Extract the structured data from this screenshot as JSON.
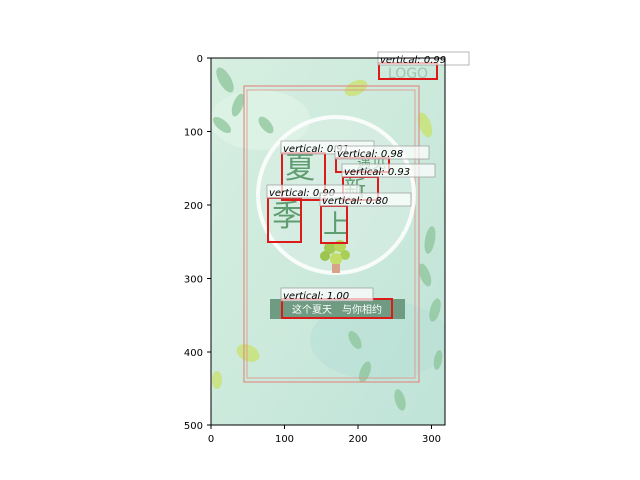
{
  "axes": {
    "x_ticks": [
      "0",
      "100",
      "200",
      "300"
    ],
    "y_ticks": [
      "0",
      "100",
      "200",
      "300",
      "400",
      "500"
    ]
  },
  "poster": {
    "logo_text": "LOGO",
    "title_chars": [
      "夏",
      "季",
      "上",
      "新",
      "遇",
      "见"
    ],
    "slogan": "这个夏天　与你相约",
    "colors": {
      "background": "#cfeadd",
      "frame": "#e08f86",
      "accent_green": "#5f9d70",
      "slogan_bar": "#6f9b82"
    }
  },
  "detections": [
    {
      "label": "vertical: 0.99"
    },
    {
      "label": "vertical: 0.91"
    },
    {
      "label": "vertical: 0.98"
    },
    {
      "label": "vertical: 0.93"
    },
    {
      "label": "vertical: 0.90"
    },
    {
      "label": "vertical: 0.80"
    },
    {
      "label": "vertical: 1.00"
    }
  ]
}
